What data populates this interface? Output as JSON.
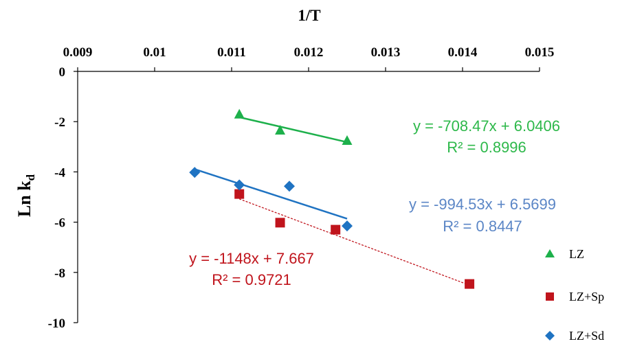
{
  "chart_data": {
    "type": "scatter",
    "title": "",
    "xlabel": "1/T",
    "ylabel": "Ln k",
    "ylabel_subscript": "d",
    "xlim": [
      0.009,
      0.015
    ],
    "ylim": [
      -10,
      0
    ],
    "x_ticks": [
      "0.009",
      "0.01",
      "0.011",
      "0.012",
      "0.013",
      "0.014",
      "0.015"
    ],
    "y_ticks": [
      "0",
      "-2",
      "-4",
      "-6",
      "-8",
      "-10"
    ],
    "x_axis_position": "top",
    "grid": false,
    "legend_position": "bottom-right",
    "series": [
      {
        "name": "LZ",
        "marker": "triangle",
        "color": "#1db04b",
        "points": [
          [
            0.0111,
            -1.71
          ],
          [
            0.01163,
            -2.35
          ],
          [
            0.0125,
            -2.76
          ]
        ],
        "trendline": {
          "slope": -708.47,
          "intercept": 6.0406,
          "style": "solid",
          "equation": "y = -708.47x + 6.0406",
          "r2": "R² = 0.8996",
          "x_range": [
            0.0111,
            0.0125
          ]
        }
      },
      {
        "name": "LZ+Sp",
        "marker": "square",
        "color": "#c0141c",
        "points": [
          [
            0.0111,
            -4.88
          ],
          [
            0.01163,
            -6.02
          ],
          [
            0.01235,
            -6.3
          ],
          [
            0.01409,
            -8.46
          ]
        ],
        "trendline": {
          "slope": -1148,
          "intercept": 7.667,
          "style": "dotted",
          "equation": "y = -1148x + 7.667",
          "r2": "R² = 0.9721",
          "x_range": [
            0.0111,
            0.01409
          ]
        }
      },
      {
        "name": "LZ+Sd",
        "marker": "diamond",
        "color": "#1f73c2",
        "points": [
          [
            0.01052,
            -4.02
          ],
          [
            0.0111,
            -4.52
          ],
          [
            0.01175,
            -4.57
          ],
          [
            0.0125,
            -6.15
          ]
        ],
        "trendline": {
          "slope": -994.53,
          "intercept": 6.5699,
          "style": "solid",
          "equation": "y = -994.53x + 6.5699",
          "r2": "R² = 0.8447",
          "x_range": [
            0.01052,
            0.0125
          ]
        }
      }
    ]
  },
  "colors": {
    "lz_equation": "#2db84a",
    "sp_equation": "#c0141c",
    "sd_equation": "#5b86c6"
  }
}
